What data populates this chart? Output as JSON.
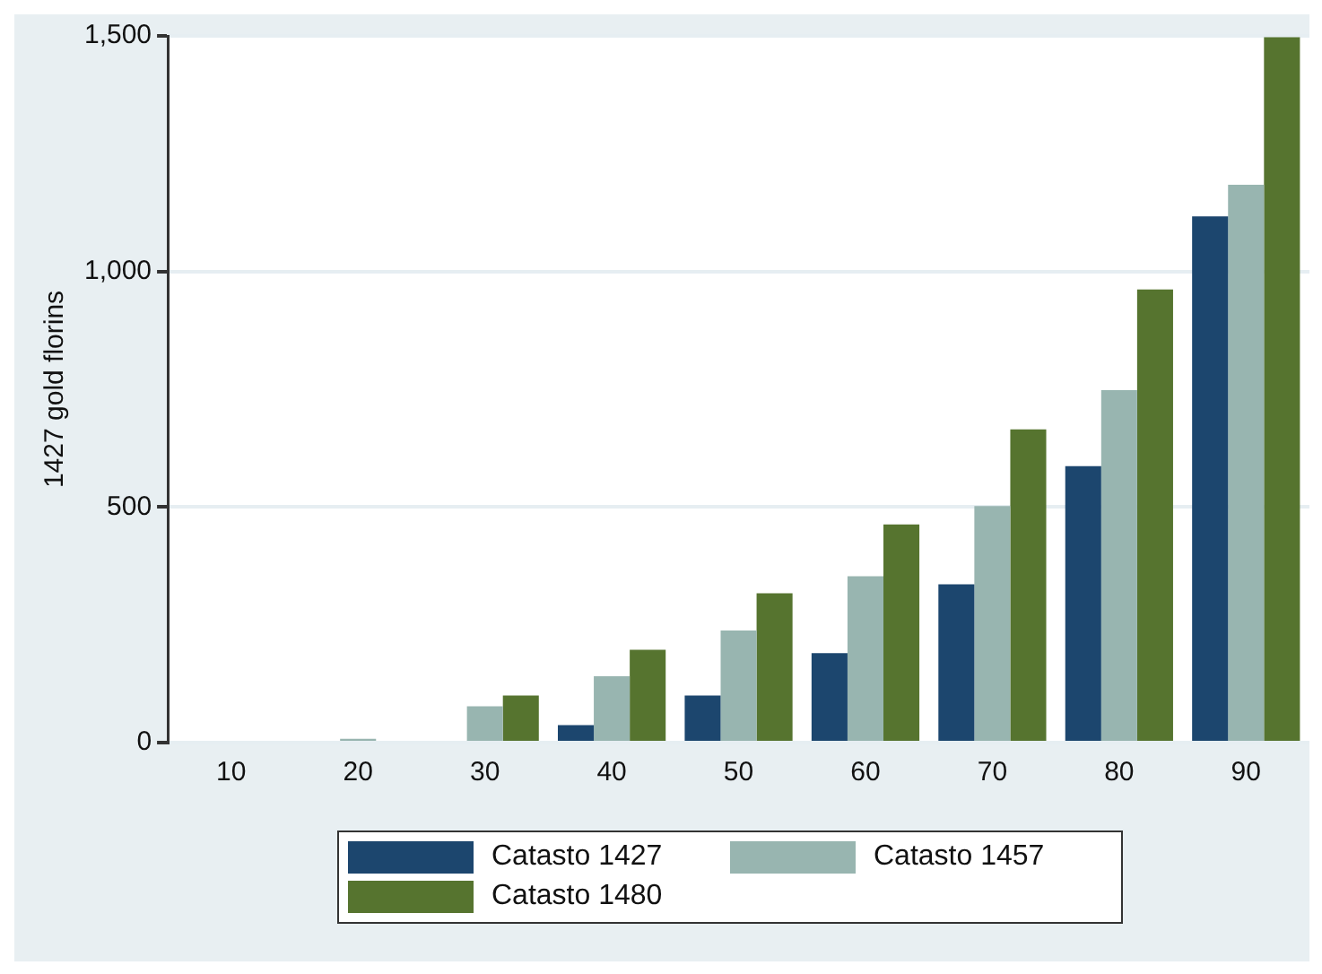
{
  "chart_data": {
    "type": "bar",
    "ylabel": "1427 gold florins",
    "categories": [
      "10",
      "20",
      "30",
      "40",
      "50",
      "60",
      "70",
      "80",
      "90"
    ],
    "series": [
      {
        "name": "Catasto 1427",
        "color": "#1c466e",
        "values": [
          0,
          0,
          0,
          37,
          100,
          190,
          336,
          587,
          1117
        ]
      },
      {
        "name": "Catasto 1457",
        "color": "#98b5b0",
        "values": [
          0,
          8,
          77,
          141,
          238,
          353,
          502,
          748,
          1184
        ]
      },
      {
        "name": "Catasto 1480",
        "color": "#56742f",
        "values": [
          0,
          0,
          100,
          197,
          317,
          463,
          665,
          962,
          1497
        ]
      }
    ],
    "ylim": [
      0,
      1500
    ],
    "yticks": [
      0,
      500,
      {
        "value": 1000,
        "label": "1,000"
      },
      {
        "value": 1500,
        "label": "1,500"
      }
    ],
    "grid": "y",
    "legend": "bottom"
  }
}
